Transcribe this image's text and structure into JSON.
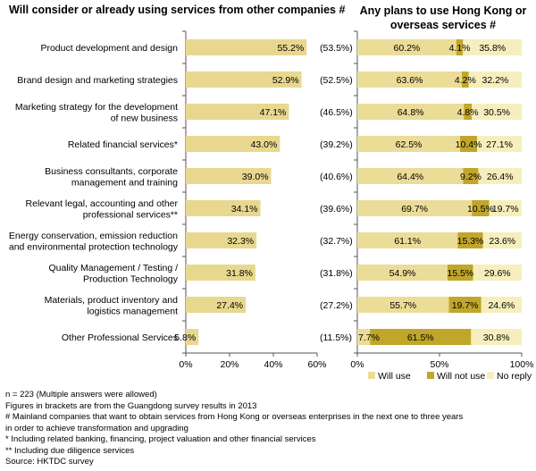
{
  "left_title": "Will consider or already using services from other companies #",
  "right_title": "Any plans to use Hong Kong or overseas services #",
  "colors": {
    "bar": "#e8d88f",
    "will_use": "#ebdc97",
    "will_not_use": "#c0a62a",
    "no_reply": "#f6efbd"
  },
  "chart_data": [
    {
      "type": "bar",
      "orientation": "horizontal",
      "categories": [
        "Product development and design",
        "Brand design and marketing strategies",
        "Marketing strategy for the development of new business",
        "Related financial services*",
        "Business consultants, corporate management and training",
        "Relevant legal, accounting and other professional services**",
        "Energy conservation, emission reduction and environmental protection technology",
        "Quality Management / Testing / Production Technology",
        "Materials, product inventory and logistics management",
        "Other Professional Services"
      ],
      "category_lines": [
        [
          "Product development and design"
        ],
        [
          "Brand design and marketing strategies"
        ],
        [
          "Marketing strategy for the development",
          "of new business"
        ],
        [
          "Related financial services*"
        ],
        [
          "Business consultants, corporate",
          "management and training"
        ],
        [
          "Relevant legal, accounting and other",
          "professional services**"
        ],
        [
          "Energy conservation, emission reduction",
          "and environmental protection technology"
        ],
        [
          "Quality Management / Testing /",
          "Production Technology"
        ],
        [
          "Materials, product inventory and",
          "logistics management"
        ],
        [
          "Other Professional Services"
        ]
      ],
      "values": [
        55.2,
        52.9,
        47.1,
        43.0,
        39.0,
        34.1,
        32.3,
        31.8,
        27.4,
        5.8
      ],
      "value_labels": [
        "55.2%",
        "52.9%",
        "47.1%",
        "43.0%",
        "39.0%",
        "34.1%",
        "32.3%",
        "31.8%",
        "27.4%",
        "5.8%"
      ],
      "bracket_values": [
        53.5,
        52.5,
        46.5,
        39.2,
        40.6,
        39.6,
        32.7,
        31.8,
        27.2,
        11.5
      ],
      "bracket_labels": [
        "(53.5%)",
        "(52.5%)",
        "(46.5%)",
        "(39.2%)",
        "(40.6%)",
        "(39.6%)",
        "(32.7%)",
        "(31.8%)",
        "(27.2%)",
        "(11.5%)"
      ],
      "xlim": [
        0,
        60
      ],
      "xticks": [
        "0%",
        "20%",
        "40%",
        "60%"
      ]
    },
    {
      "type": "bar",
      "orientation": "horizontal",
      "stacked": true,
      "series": [
        {
          "name": "Will use",
          "values": [
            60.2,
            63.6,
            64.8,
            62.5,
            64.4,
            69.7,
            61.1,
            54.9,
            55.7,
            7.7
          ],
          "labels": [
            "60.2%",
            "63.6%",
            "64.8%",
            "62.5%",
            "64.4%",
            "69.7%",
            "61.1%",
            "54.9%",
            "55.7%",
            "7.7%"
          ]
        },
        {
          "name": "Will not use",
          "values": [
            4.1,
            4.2,
            4.8,
            10.4,
            9.2,
            10.5,
            15.3,
            15.5,
            19.7,
            61.5
          ],
          "labels": [
            "4.1%",
            "4.2%",
            "4.8%",
            "10.4%",
            "9.2%",
            "10.5%",
            "15.3%",
            "15.5%",
            "19.7%",
            "61.5%"
          ]
        },
        {
          "name": "No reply",
          "values": [
            35.8,
            32.2,
            30.5,
            27.1,
            26.4,
            19.7,
            23.6,
            29.6,
            24.6,
            30.8
          ],
          "labels": [
            "35.8%",
            "32.2%",
            "30.5%",
            "27.1%",
            "26.4%",
            "19.7%",
            "23.6%",
            "29.6%",
            "24.6%",
            "30.8%"
          ]
        }
      ],
      "xlim": [
        0,
        100
      ],
      "xticks": [
        "0%",
        "50%",
        "100%"
      ],
      "legend_position": "bottom"
    }
  ],
  "notes": [
    "n = 223 (Multiple answers were allowed)",
    "Figures in brackets are from the Guangdong survey results in 2013",
    "#  Mainland companies that want to obtain services from Hong Kong or overseas enterprises in the next one to three years",
    "    in order to achieve transformation and upgrading",
    "*  Including related banking, financing, project valuation and other financial services",
    "** Including due diligence services",
    "Source: HKTDC survey"
  ]
}
